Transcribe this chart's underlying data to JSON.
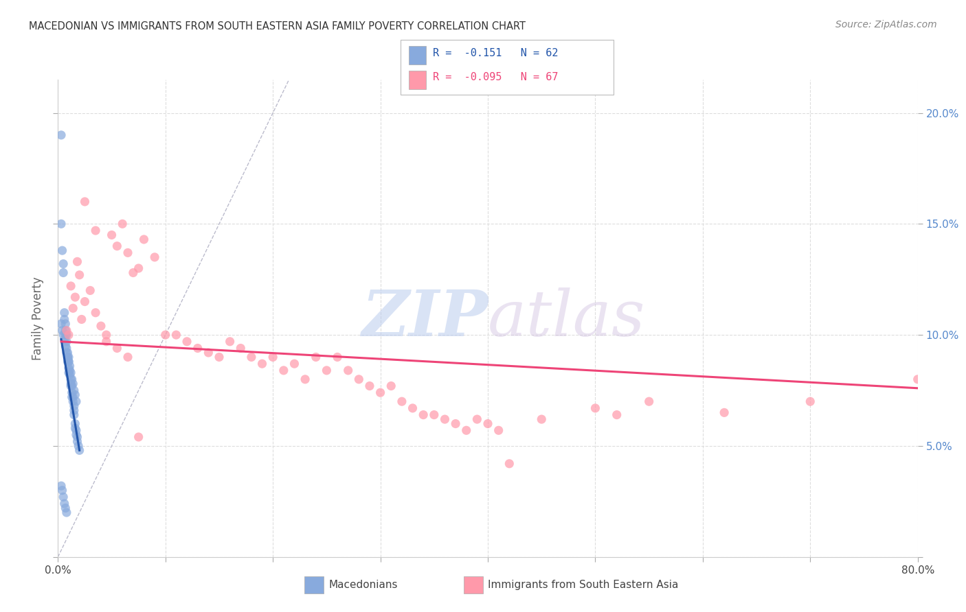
{
  "title": "MACEDONIAN VS IMMIGRANTS FROM SOUTH EASTERN ASIA FAMILY POVERTY CORRELATION CHART",
  "source": "Source: ZipAtlas.com",
  "ylabel": "Family Poverty",
  "yticks": [
    0.0,
    0.05,
    0.1,
    0.15,
    0.2
  ],
  "ytick_labels": [
    "",
    "5.0%",
    "10.0%",
    "15.0%",
    "20.0%"
  ],
  "xticks": [
    0.0,
    0.1,
    0.2,
    0.3,
    0.4,
    0.5,
    0.6,
    0.7,
    0.8
  ],
  "xlim": [
    0.0,
    0.8
  ],
  "ylim": [
    0.0,
    0.215
  ],
  "blue_color": "#88AADD",
  "pink_color": "#FF99AA",
  "blue_R": -0.151,
  "blue_N": 62,
  "pink_R": -0.095,
  "pink_N": 67,
  "watermark_zip": "ZIP",
  "watermark_atlas": "atlas",
  "blue_scatter_x": [
    0.003,
    0.003,
    0.004,
    0.005,
    0.005,
    0.006,
    0.006,
    0.007,
    0.007,
    0.007,
    0.008,
    0.008,
    0.008,
    0.009,
    0.009,
    0.009,
    0.01,
    0.01,
    0.01,
    0.01,
    0.011,
    0.011,
    0.012,
    0.012,
    0.012,
    0.013,
    0.013,
    0.013,
    0.014,
    0.014,
    0.015,
    0.015,
    0.015,
    0.016,
    0.016,
    0.017,
    0.017,
    0.018,
    0.018,
    0.019,
    0.003,
    0.004,
    0.005,
    0.006,
    0.007,
    0.008,
    0.009,
    0.01,
    0.011,
    0.012,
    0.013,
    0.014,
    0.015,
    0.016,
    0.017,
    0.003,
    0.004,
    0.005,
    0.006,
    0.007,
    0.008,
    0.02
  ],
  "blue_scatter_y": [
    0.19,
    0.15,
    0.138,
    0.132,
    0.128,
    0.11,
    0.107,
    0.105,
    0.102,
    0.1,
    0.1,
    0.097,
    0.094,
    0.092,
    0.09,
    0.088,
    0.09,
    0.088,
    0.085,
    0.083,
    0.084,
    0.082,
    0.08,
    0.078,
    0.077,
    0.077,
    0.074,
    0.072,
    0.072,
    0.07,
    0.068,
    0.066,
    0.064,
    0.06,
    0.058,
    0.057,
    0.055,
    0.054,
    0.052,
    0.05,
    0.105,
    0.102,
    0.1,
    0.098,
    0.095,
    0.092,
    0.09,
    0.088,
    0.086,
    0.083,
    0.08,
    0.078,
    0.075,
    0.073,
    0.07,
    0.032,
    0.03,
    0.027,
    0.024,
    0.022,
    0.02,
    0.048
  ],
  "pink_scatter_x": [
    0.008,
    0.01,
    0.012,
    0.014,
    0.016,
    0.018,
    0.02,
    0.022,
    0.025,
    0.03,
    0.035,
    0.04,
    0.045,
    0.05,
    0.055,
    0.06,
    0.065,
    0.07,
    0.075,
    0.08,
    0.09,
    0.1,
    0.11,
    0.12,
    0.13,
    0.14,
    0.15,
    0.16,
    0.17,
    0.18,
    0.19,
    0.2,
    0.21,
    0.22,
    0.23,
    0.24,
    0.25,
    0.26,
    0.27,
    0.28,
    0.29,
    0.3,
    0.31,
    0.32,
    0.33,
    0.34,
    0.35,
    0.36,
    0.37,
    0.38,
    0.39,
    0.4,
    0.41,
    0.42,
    0.45,
    0.5,
    0.52,
    0.55,
    0.62,
    0.7,
    0.8,
    0.025,
    0.035,
    0.045,
    0.055,
    0.065,
    0.075
  ],
  "pink_scatter_y": [
    0.102,
    0.1,
    0.122,
    0.112,
    0.117,
    0.133,
    0.127,
    0.107,
    0.115,
    0.12,
    0.11,
    0.104,
    0.097,
    0.145,
    0.14,
    0.15,
    0.137,
    0.128,
    0.13,
    0.143,
    0.135,
    0.1,
    0.1,
    0.097,
    0.094,
    0.092,
    0.09,
    0.097,
    0.094,
    0.09,
    0.087,
    0.09,
    0.084,
    0.087,
    0.08,
    0.09,
    0.084,
    0.09,
    0.084,
    0.08,
    0.077,
    0.074,
    0.077,
    0.07,
    0.067,
    0.064,
    0.064,
    0.062,
    0.06,
    0.057,
    0.062,
    0.06,
    0.057,
    0.042,
    0.062,
    0.067,
    0.064,
    0.07,
    0.065,
    0.07,
    0.08,
    0.16,
    0.147,
    0.1,
    0.094,
    0.09,
    0.054
  ],
  "blue_line_x": [
    0.003,
    0.02
  ],
  "blue_line_y": [
    0.098,
    0.048
  ],
  "pink_line_x": [
    0.003,
    0.8
  ],
  "pink_line_y": [
    0.097,
    0.076
  ],
  "ref_line_x": [
    0.0,
    0.215
  ],
  "ref_line_y": [
    0.0,
    0.215
  ],
  "background_color": "#FFFFFF",
  "grid_color": "#DDDDDD",
  "title_color": "#333333",
  "right_axis_color": "#5588CC"
}
